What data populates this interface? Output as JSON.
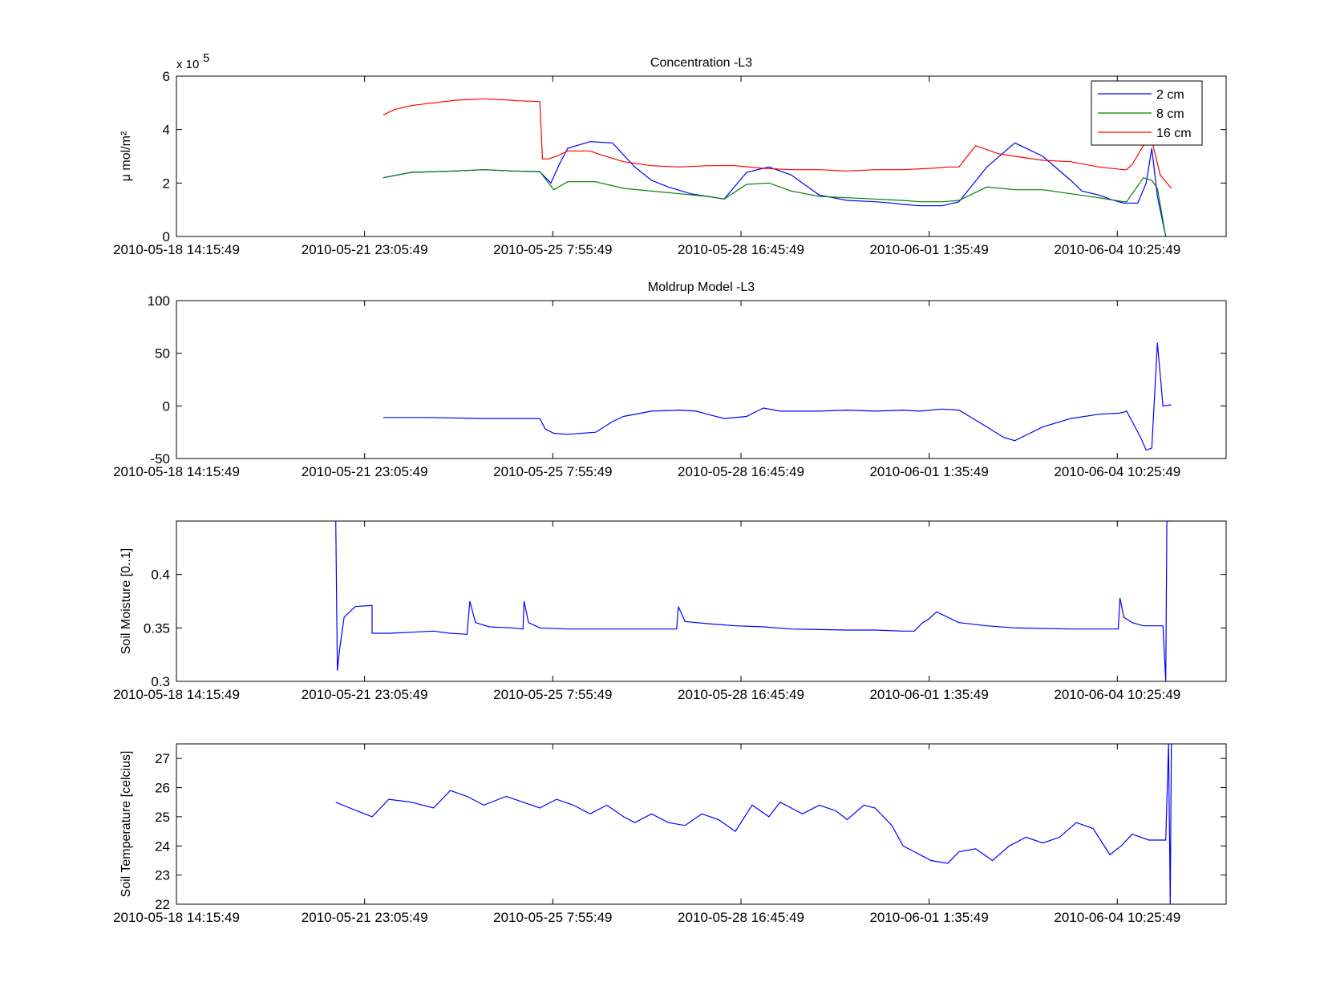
{
  "x_tick_labels": [
    "2010-05-18 14:15:49",
    "2010-05-21 23:05:49",
    "2010-05-25 7:55:49",
    "2010-05-28 16:45:49",
    "2010-06-01 1:35:49",
    "2010-06-04 10:25:49"
  ],
  "colors": {
    "2 cm": "#0000ff",
    "8 cm": "#008000",
    "16 cm": "#ff0000",
    "axis": "#000000"
  },
  "chart_data": [
    {
      "type": "line",
      "title": "Concentration -L3",
      "ylabel": "μ mol/m²",
      "yexponent_text": "x 10",
      "yexponent_power": "5",
      "xlim": [
        0,
        18.78
      ],
      "ylim": [
        0,
        6
      ],
      "ytick_values": [
        0,
        2,
        4,
        6
      ],
      "ytick_labels": [
        "0",
        "2",
        "4",
        "6"
      ],
      "legend_position": "top-right",
      "x_unit": "days since 2010-05-18 14:15:49",
      "series": [
        {
          "name": "2 cm",
          "color": "#0000ff",
          "x": [
            3.7,
            4.2,
            5.0,
            5.5,
            6.0,
            6.5,
            6.7,
            6.85,
            7.0,
            7.4,
            7.8,
            8.2,
            8.5,
            8.8,
            9.2,
            9.5,
            9.8,
            10.2,
            10.6,
            11.0,
            11.5,
            12.0,
            12.5,
            12.8,
            13.0,
            13.3,
            13.7,
            14.0,
            14.5,
            15.0,
            15.5,
            16.0,
            16.2,
            16.5,
            16.7,
            16.85,
            16.95,
            17.0,
            17.1,
            17.2,
            17.35,
            17.45,
            17.55,
            17.7
          ],
          "y": [
            2.2,
            2.4,
            2.45,
            2.5,
            2.45,
            2.42,
            2.0,
            2.7,
            3.3,
            3.55,
            3.5,
            2.6,
            2.1,
            1.85,
            1.6,
            1.5,
            1.4,
            2.4,
            2.6,
            2.3,
            1.55,
            1.35,
            1.3,
            1.25,
            1.2,
            1.15,
            1.15,
            1.3,
            2.6,
            3.5,
            3.0,
            2.1,
            1.7,
            1.55,
            1.4,
            1.3,
            1.25,
            1.25,
            1.25,
            1.25,
            2.0,
            3.3,
            1.5,
            0.0
          ]
        },
        {
          "name": "8 cm",
          "color": "#008000",
          "x": [
            3.7,
            4.2,
            5.0,
            5.5,
            6.0,
            6.5,
            6.75,
            7.0,
            7.5,
            8.0,
            9.0,
            9.5,
            9.8,
            10.2,
            10.6,
            11.0,
            11.5,
            12.0,
            12.5,
            13.0,
            13.3,
            13.7,
            14.0,
            14.5,
            15.0,
            15.5,
            16.0,
            16.5,
            16.95,
            17.0,
            17.3,
            17.45,
            17.55,
            17.7
          ],
          "y": [
            2.2,
            2.4,
            2.45,
            2.5,
            2.45,
            2.43,
            1.75,
            2.05,
            2.05,
            1.8,
            1.6,
            1.5,
            1.4,
            1.95,
            2.0,
            1.7,
            1.5,
            1.45,
            1.4,
            1.35,
            1.3,
            1.3,
            1.35,
            1.85,
            1.75,
            1.75,
            1.6,
            1.45,
            1.3,
            1.3,
            2.2,
            2.1,
            1.8,
            0.0
          ]
        },
        {
          "name": "16 cm",
          "color": "#ff0000",
          "x": [
            3.7,
            3.9,
            4.2,
            4.6,
            5.0,
            5.5,
            6.0,
            6.1,
            6.5,
            6.55,
            6.65,
            6.8,
            7.0,
            7.4,
            7.6,
            8.0,
            8.5,
            9.0,
            9.5,
            10.0,
            10.5,
            11.0,
            11.5,
            12.0,
            12.5,
            13.0,
            13.5,
            13.8,
            14.0,
            14.3,
            14.7,
            15.0,
            15.5,
            16.0,
            16.5,
            16.95,
            17.0,
            17.1,
            17.3,
            17.45,
            17.6,
            17.8
          ],
          "y": [
            4.55,
            4.75,
            4.9,
            5.0,
            5.1,
            5.15,
            5.1,
            5.08,
            5.05,
            2.9,
            2.9,
            3.0,
            3.2,
            3.2,
            3.05,
            2.8,
            2.65,
            2.6,
            2.65,
            2.65,
            2.55,
            2.5,
            2.5,
            2.45,
            2.5,
            2.5,
            2.55,
            2.6,
            2.6,
            3.4,
            3.1,
            3.0,
            2.85,
            2.8,
            2.6,
            2.5,
            2.5,
            2.7,
            3.4,
            3.6,
            2.3,
            1.8
          ]
        }
      ]
    },
    {
      "type": "line",
      "title": "Moldrup Model -L3",
      "ylabel": "",
      "xlim": [
        0,
        18.78
      ],
      "ylim": [
        -50,
        100
      ],
      "ytick_values": [
        -50,
        0,
        50,
        100
      ],
      "ytick_labels": [
        "-50",
        "0",
        "50",
        "100"
      ],
      "series": [
        {
          "name": "",
          "color": "#0000ff",
          "x": [
            3.7,
            4.5,
            5.5,
            6.0,
            6.3,
            6.5,
            6.6,
            6.75,
            7.0,
            7.5,
            7.8,
            8.0,
            8.5,
            9.0,
            9.3,
            9.5,
            9.8,
            10.2,
            10.5,
            10.8,
            11.0,
            11.5,
            12.0,
            12.5,
            13.0,
            13.3,
            13.7,
            14.0,
            14.5,
            14.8,
            15.0,
            15.5,
            16.0,
            16.5,
            16.85,
            16.95,
            17.0,
            17.1,
            17.25,
            17.35,
            17.45,
            17.55,
            17.65,
            17.8
          ],
          "y": [
            -11,
            -11,
            -12,
            -12,
            -12,
            -12,
            -22,
            -26,
            -27,
            -25,
            -15,
            -10,
            -5,
            -4,
            -5,
            -8,
            -12,
            -10,
            -2,
            -5,
            -5,
            -5,
            -4,
            -5,
            -4,
            -5,
            -3,
            -4,
            -20,
            -30,
            -33,
            -20,
            -12,
            -8,
            -7,
            -6,
            -5,
            -15,
            -30,
            -42,
            -40,
            60,
            0,
            1
          ]
        }
      ]
    },
    {
      "type": "line",
      "title": "",
      "ylabel": "Soil Moisture [0..1]",
      "xlim": [
        0,
        18.78
      ],
      "ylim": [
        0.3,
        0.45
      ],
      "ytick_values": [
        0.3,
        0.35,
        0.4
      ],
      "ytick_labels": [
        "0.3",
        "0.35",
        "0.4"
      ],
      "series": [
        {
          "name": "",
          "color": "#0000ff",
          "x": [
            2.85,
            2.88,
            2.92,
            3.0,
            3.2,
            3.5,
            3.5,
            3.8,
            4.2,
            4.6,
            4.9,
            5.2,
            5.25,
            5.35,
            5.6,
            6.0,
            6.2,
            6.22,
            6.3,
            6.5,
            7.0,
            7.5,
            8.0,
            8.5,
            8.95,
            8.98,
            9.1,
            9.5,
            10.0,
            10.5,
            11.0,
            12.0,
            12.5,
            13.0,
            13.2,
            13.35,
            13.45,
            13.6,
            14.0,
            14.5,
            15.0,
            16.0,
            16.5,
            16.85,
            16.88,
            16.95,
            17.1,
            17.3,
            17.65,
            17.7,
            17.72,
            17.75,
            17.78,
            17.82
          ],
          "y": [
            0.45,
            0.31,
            0.33,
            0.36,
            0.37,
            0.371,
            0.345,
            0.345,
            0.346,
            0.347,
            0.345,
            0.344,
            0.375,
            0.355,
            0.351,
            0.35,
            0.349,
            0.375,
            0.355,
            0.35,
            0.349,
            0.349,
            0.349,
            0.349,
            0.349,
            0.37,
            0.356,
            0.354,
            0.352,
            0.351,
            0.349,
            0.348,
            0.348,
            0.347,
            0.347,
            0.355,
            0.358,
            0.365,
            0.355,
            0.352,
            0.35,
            0.349,
            0.349,
            0.349,
            0.378,
            0.36,
            0.355,
            0.352,
            0.352,
            0.3,
            0.45,
            0.45,
            0.45,
            0.45
          ]
        }
      ]
    },
    {
      "type": "line",
      "title": "",
      "ylabel": "Soil Temperature [celcius]",
      "xlim": [
        0,
        18.78
      ],
      "ylim": [
        22,
        27.5
      ],
      "ytick_values": [
        22,
        23,
        24,
        25,
        26,
        27
      ],
      "ytick_labels": [
        "22",
        "23",
        "24",
        "25",
        "26",
        "27"
      ],
      "series": [
        {
          "name": "",
          "color": "#0000ff",
          "x": [
            2.85,
            3.1,
            3.5,
            3.8,
            4.2,
            4.6,
            4.9,
            5.2,
            5.5,
            5.9,
            6.2,
            6.5,
            6.8,
            7.1,
            7.4,
            7.7,
            8.0,
            8.2,
            8.5,
            8.8,
            9.1,
            9.4,
            9.7,
            10.0,
            10.3,
            10.6,
            10.8,
            11.0,
            11.2,
            11.5,
            11.8,
            12.0,
            12.3,
            12.5,
            12.8,
            13.0,
            13.2,
            13.5,
            13.8,
            14.0,
            14.3,
            14.6,
            14.9,
            15.2,
            15.5,
            15.8,
            16.1,
            16.4,
            16.7,
            16.9,
            17.1,
            17.4,
            17.65,
            17.7,
            17.75,
            17.78,
            17.8
          ],
          "y": [
            25.5,
            25.3,
            25.0,
            25.6,
            25.5,
            25.3,
            25.9,
            25.7,
            25.4,
            25.7,
            25.5,
            25.3,
            25.6,
            25.4,
            25.1,
            25.4,
            25.0,
            24.8,
            25.1,
            24.8,
            24.7,
            25.1,
            24.9,
            24.5,
            25.4,
            25.0,
            25.5,
            25.3,
            25.1,
            25.4,
            25.2,
            24.9,
            25.4,
            25.3,
            24.7,
            24.0,
            23.8,
            23.5,
            23.4,
            23.8,
            23.9,
            23.5,
            24.0,
            24.3,
            24.1,
            24.3,
            24.8,
            24.6,
            23.7,
            24.0,
            24.4,
            24.2,
            24.2,
            24.2,
            27.5,
            22.0,
            27.5
          ]
        }
      ]
    }
  ]
}
